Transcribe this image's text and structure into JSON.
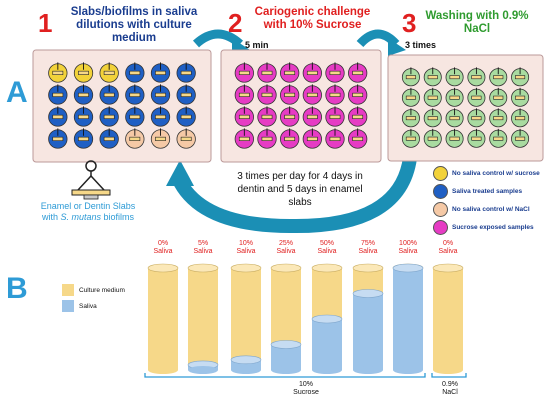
{
  "panels": {
    "a": "A",
    "b": "B"
  },
  "steps": [
    {
      "num": "1",
      "title": "Slabs/biofilms in saliva dilutions with culture medium",
      "color": "#1a3d8f"
    },
    {
      "num": "2",
      "title": "Cariogenic challenge with 10% Sucrose",
      "color": "#e02020"
    },
    {
      "num": "3",
      "title": "Washing with 0.9% NaCl",
      "color": "#2f9b2f"
    }
  ],
  "arrow_labels": {
    "five_min": "5 min",
    "three_times": "3 times"
  },
  "cycle_text": "3 times per day for 4 days in dentin and 5 days in enamel slabs",
  "slab_caption": {
    "line1": "Enamel or Dentin Slabs",
    "line2_pre": "with ",
    "line2_italic": "S. mutans",
    "line2_post": " biofilms"
  },
  "legend_a": [
    {
      "label": "No saliva control w/ sucrose",
      "color": "#f2d23a"
    },
    {
      "label": "Saliva treated samples",
      "color": "#1f5fc4"
    },
    {
      "label": "No saliva control w/ NaCl",
      "color": "#f5c9a6"
    },
    {
      "label": "Sucrose exposed samples",
      "color": "#e63cc4"
    }
  ],
  "colors": {
    "yellow": "#f2d23a",
    "blue": "#1f5fc4",
    "peach": "#f5c9a6",
    "magenta": "#e63cc4",
    "green": "#a9dba0",
    "arrow": "#1b8fb5",
    "culture": "#f6d889",
    "saliva": "#9cc3e8"
  },
  "legend_b": [
    {
      "label": "Culture medium",
      "color": "#f6d889"
    },
    {
      "label": "Saliva",
      "color": "#9cc3e8"
    }
  ],
  "chart_data": {
    "type": "bar",
    "categories": [
      "0% Saliva",
      "5% Saliva",
      "10% Saliva",
      "25% Saliva",
      "50% Saliva",
      "75% Saliva",
      "100% Saliva",
      "0% Saliva"
    ],
    "series": [
      {
        "name": "Saliva",
        "values": [
          0,
          5,
          10,
          25,
          50,
          75,
          100,
          0
        ]
      },
      {
        "name": "Culture medium",
        "values": [
          100,
          95,
          90,
          75,
          50,
          25,
          0,
          100
        ]
      }
    ],
    "groups": [
      {
        "label": "10% Sucrose",
        "from": 0,
        "to": 6
      },
      {
        "label": "0.9% NaCl",
        "from": 7,
        "to": 7
      }
    ]
  },
  "bar_labels": [
    {
      "pct": "0%",
      "word": "Saliva"
    },
    {
      "pct": "5%",
      "word": "Saliva"
    },
    {
      "pct": "10%",
      "word": "Saliva"
    },
    {
      "pct": "25%",
      "word": "Saliva"
    },
    {
      "pct": "50%",
      "word": "Saliva"
    },
    {
      "pct": "75%",
      "word": "Saliva"
    },
    {
      "pct": "100%",
      "word": "Saliva"
    },
    {
      "pct": "0%",
      "word": "Saliva"
    }
  ],
  "group_labels": [
    {
      "line1": "10%",
      "line2": "Sucrose"
    },
    {
      "line1": "0.9%",
      "line2": "NaCl"
    }
  ]
}
